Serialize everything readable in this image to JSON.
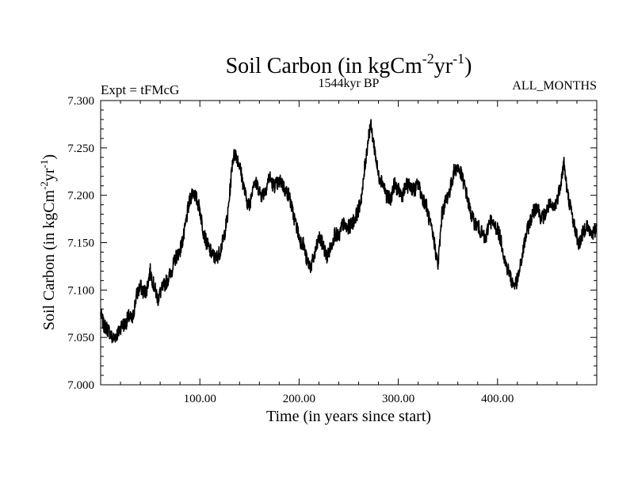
{
  "chart_data": {
    "type": "line",
    "title_main": "Soil Carbon (in kgCm",
    "title_sup1": "-2",
    "title_mid": "yr",
    "title_sup2": "-1",
    "title_end": ")",
    "subtitle_left": "Expt = tFMcG",
    "subtitle_center": "1544kyr BP",
    "subtitle_right": "ALL_MONTHS",
    "xlabel": "Time (in years since start)",
    "ylabel_main": "Soil Carbon (in kgCm",
    "ylabel_sup1": "-2",
    "ylabel_mid": "yr",
    "ylabel_sup2": "-1",
    "ylabel_end": ")",
    "xlim": [
      0,
      500
    ],
    "ylim": [
      7.0,
      7.3
    ],
    "xticks": [
      {
        "value": 100,
        "label": "100.00"
      },
      {
        "value": 200,
        "label": "200.00"
      },
      {
        "value": 300,
        "label": "300.00"
      },
      {
        "value": 400,
        "label": "400.00"
      }
    ],
    "yticks": [
      {
        "value": 7.0,
        "label": "7.000"
      },
      {
        "value": 7.05,
        "label": "7.050"
      },
      {
        "value": 7.1,
        "label": "7.100"
      },
      {
        "value": 7.15,
        "label": "7.150"
      },
      {
        "value": 7.2,
        "label": "7.200"
      },
      {
        "value": 7.25,
        "label": "7.250"
      },
      {
        "value": 7.3,
        "label": "7.300"
      }
    ],
    "series": [
      {
        "name": "soil_carbon",
        "color": "#000000",
        "x": [
          0,
          3,
          6,
          9,
          12,
          15,
          18,
          21,
          25,
          28,
          32,
          36,
          40,
          43,
          46,
          50,
          54,
          58,
          60,
          64,
          68,
          72,
          76,
          80,
          84,
          88,
          90,
          93,
          96,
          100,
          103,
          106,
          110,
          113,
          116,
          120,
          124,
          128,
          131,
          133,
          136,
          140,
          144,
          147,
          150,
          154,
          158,
          162,
          166,
          170,
          174,
          178,
          182,
          186,
          190,
          194,
          198,
          201,
          204,
          208,
          212,
          216,
          220,
          224,
          228,
          232,
          236,
          240,
          244,
          248,
          252,
          256,
          260,
          264,
          266,
          268,
          270,
          272,
          276,
          280,
          284,
          288,
          292,
          296,
          300,
          304,
          308,
          312,
          316,
          320,
          324,
          328,
          332,
          336,
          340,
          344,
          348,
          352,
          356,
          360,
          364,
          368,
          372,
          376,
          380,
          384,
          388,
          392,
          396,
          400,
          404,
          408,
          412,
          414,
          416,
          420,
          424,
          428,
          432,
          436,
          440,
          444,
          448,
          452,
          456,
          460,
          464,
          467,
          470,
          474,
          478,
          482,
          486,
          490,
          494,
          498,
          500
        ],
        "y": [
          7.075,
          7.063,
          7.06,
          7.056,
          7.048,
          7.052,
          7.055,
          7.063,
          7.064,
          7.072,
          7.068,
          7.094,
          7.104,
          7.098,
          7.099,
          7.12,
          7.103,
          7.09,
          7.097,
          7.105,
          7.112,
          7.122,
          7.135,
          7.142,
          7.158,
          7.185,
          7.195,
          7.205,
          7.198,
          7.185,
          7.165,
          7.152,
          7.142,
          7.137,
          7.133,
          7.14,
          7.155,
          7.178,
          7.213,
          7.238,
          7.245,
          7.232,
          7.21,
          7.195,
          7.188,
          7.215,
          7.21,
          7.2,
          7.205,
          7.22,
          7.21,
          7.212,
          7.215,
          7.205,
          7.2,
          7.18,
          7.165,
          7.152,
          7.15,
          7.13,
          7.125,
          7.138,
          7.155,
          7.148,
          7.135,
          7.145,
          7.16,
          7.155,
          7.17,
          7.165,
          7.168,
          7.175,
          7.185,
          7.205,
          7.228,
          7.245,
          7.262,
          7.275,
          7.25,
          7.22,
          7.215,
          7.2,
          7.195,
          7.212,
          7.205,
          7.2,
          7.21,
          7.21,
          7.205,
          7.212,
          7.198,
          7.19,
          7.17,
          7.152,
          7.125,
          7.18,
          7.195,
          7.205,
          7.225,
          7.23,
          7.22,
          7.205,
          7.185,
          7.172,
          7.168,
          7.16,
          7.152,
          7.175,
          7.168,
          7.165,
          7.15,
          7.128,
          7.118,
          7.11,
          7.105,
          7.11,
          7.13,
          7.155,
          7.17,
          7.182,
          7.19,
          7.175,
          7.18,
          7.19,
          7.185,
          7.195,
          7.215,
          7.235,
          7.205,
          7.185,
          7.165,
          7.148,
          7.16,
          7.17,
          7.158,
          7.162,
          7.168
        ]
      }
    ]
  }
}
